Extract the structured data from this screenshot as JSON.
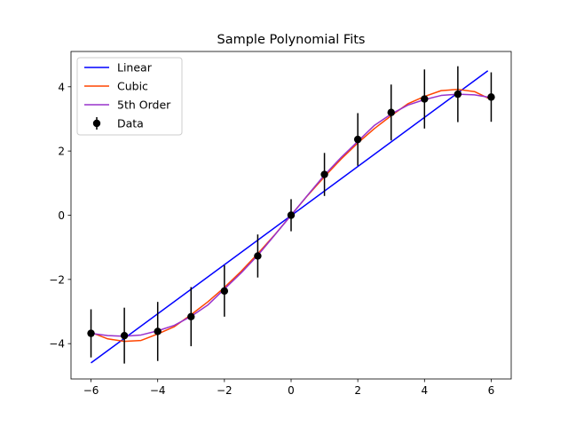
{
  "chart_data": {
    "type": "line",
    "title": "Sample Polynomial Fits",
    "xlabel": "",
    "ylabel": "",
    "xlim": [
      -6.6,
      6.6
    ],
    "ylim": [
      -5.1,
      5.1
    ],
    "xticks": [
      -6,
      -4,
      -2,
      0,
      2,
      4,
      6
    ],
    "yticks": [
      -4,
      -2,
      0,
      2,
      4
    ],
    "grid": false,
    "legend_position": "upper-left",
    "series": [
      {
        "name": "Linear",
        "color": "#0000ff",
        "kind": "line",
        "x": [
          -6,
          5.9
        ],
        "y": [
          -4.6,
          4.5
        ]
      },
      {
        "name": "Cubic",
        "color": "#ff4500",
        "kind": "line",
        "x": [
          -6,
          -5.5,
          -5,
          -4.5,
          -4,
          -3.5,
          -3,
          -2.5,
          -2,
          -1.5,
          -1,
          -0.5,
          0,
          0.5,
          1,
          1.5,
          2,
          2.5,
          3,
          3.5,
          4,
          4.5,
          5,
          5.5,
          5.9
        ],
        "y": [
          -3.65,
          -3.85,
          -3.93,
          -3.9,
          -3.7,
          -3.47,
          -3.1,
          -2.7,
          -2.25,
          -1.75,
          -1.2,
          -0.62,
          0,
          0.62,
          1.2,
          1.75,
          2.25,
          2.7,
          3.1,
          3.47,
          3.7,
          3.88,
          3.92,
          3.85,
          3.65
        ]
      },
      {
        "name": "5th Order",
        "color": "#9932cc",
        "kind": "line",
        "x": [
          -6,
          -5.5,
          -5,
          -4.5,
          -4,
          -3.5,
          -3,
          -2.5,
          -2,
          -1.5,
          -1,
          -0.5,
          0,
          0.5,
          1,
          1.5,
          2,
          2.5,
          3,
          3.5,
          4,
          4.5,
          5,
          5.5,
          5.9
        ],
        "y": [
          -3.68,
          -3.75,
          -3.77,
          -3.73,
          -3.6,
          -3.43,
          -3.15,
          -2.8,
          -2.3,
          -1.8,
          -1.25,
          -0.63,
          0,
          0.63,
          1.25,
          1.8,
          2.3,
          2.8,
          3.15,
          3.43,
          3.6,
          3.73,
          3.77,
          3.75,
          3.68
        ]
      },
      {
        "name": "Data",
        "color": "#000000",
        "kind": "errorbar",
        "x": [
          -6,
          -5,
          -4,
          -3,
          -2,
          -1,
          0,
          1,
          2,
          3,
          4,
          5,
          6
        ],
        "y": [
          -3.68,
          -3.75,
          -3.62,
          -3.16,
          -2.36,
          -1.27,
          0.0,
          1.27,
          2.36,
          3.2,
          3.62,
          3.77,
          3.68
        ],
        "yerr": [
          0.75,
          0.87,
          0.92,
          0.92,
          0.8,
          0.67,
          0.5,
          0.67,
          0.82,
          0.87,
          0.92,
          0.87,
          0.77
        ]
      }
    ]
  }
}
